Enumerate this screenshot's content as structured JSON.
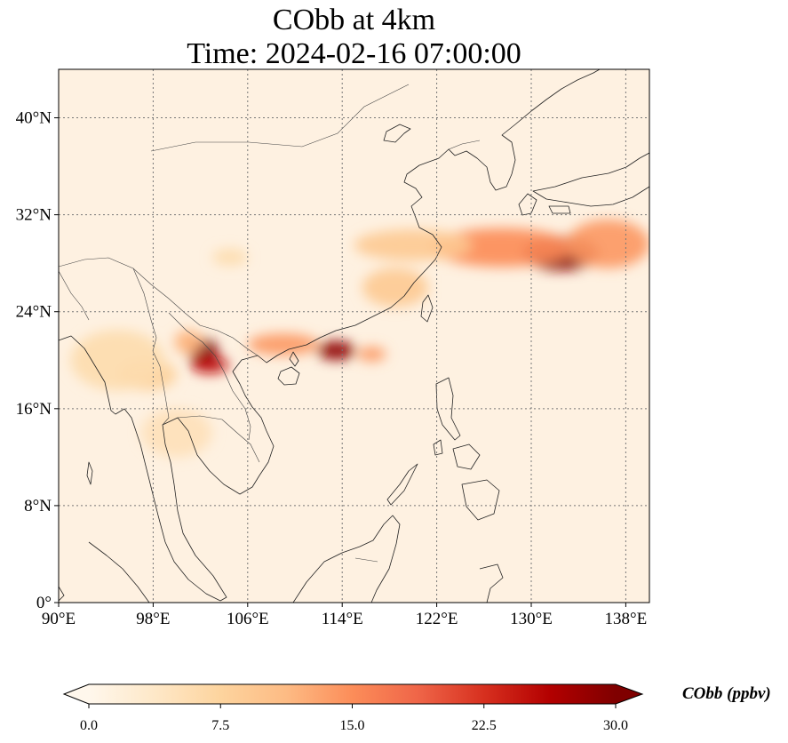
{
  "title": {
    "line1": "CObb at 4km",
    "line2": "Time: 2024-02-16 07:00:00"
  },
  "map": {
    "lon_range": [
      90,
      140
    ],
    "lat_range": [
      0,
      44
    ],
    "lon_ticks": [
      "90°E",
      "98°E",
      "106°E",
      "114°E",
      "122°E",
      "130°E",
      "138°E"
    ],
    "lon_tick_values": [
      90,
      98,
      106,
      114,
      122,
      130,
      138
    ],
    "lat_ticks": [
      "0°",
      "8°N",
      "16°N",
      "24°N",
      "32°N",
      "40°N"
    ],
    "lat_tick_values": [
      0,
      8,
      16,
      24,
      32,
      40
    ],
    "gridlines": true,
    "field_colormap": "OrRd",
    "plumes": [
      {
        "lon": 132.5,
        "lat": 28.8,
        "rlon": 3.2,
        "rlat": 1.4,
        "val": 29
      },
      {
        "lon": 127.5,
        "lat": 29.3,
        "rlon": 6.0,
        "rlat": 1.6,
        "val": 15
      },
      {
        "lon": 136.5,
        "lat": 29.6,
        "rlon": 3.5,
        "rlat": 2.0,
        "val": 14
      },
      {
        "lon": 120.0,
        "lat": 29.5,
        "rlon": 5.0,
        "rlat": 1.3,
        "val": 9
      },
      {
        "lon": 113.5,
        "lat": 20.8,
        "rlon": 1.6,
        "rlat": 0.8,
        "val": 29
      },
      {
        "lon": 109.0,
        "lat": 21.3,
        "rlon": 3.0,
        "rlat": 0.9,
        "val": 14
      },
      {
        "lon": 116.5,
        "lat": 20.5,
        "rlon": 1.2,
        "rlat": 0.6,
        "val": 14
      },
      {
        "lon": 102.3,
        "lat": 20.6,
        "rlon": 1.2,
        "rlat": 1.2,
        "val": 30
      },
      {
        "lon": 102.8,
        "lat": 19.6,
        "rlon": 1.6,
        "rlat": 0.7,
        "val": 25
      },
      {
        "lon": 101.0,
        "lat": 21.5,
        "rlon": 1.2,
        "rlat": 1.0,
        "val": 12
      },
      {
        "lon": 97.5,
        "lat": 18.8,
        "rlon": 2.5,
        "rlat": 1.3,
        "val": 8
      },
      {
        "lon": 118.5,
        "lat": 26.0,
        "rlon": 2.8,
        "rlat": 1.6,
        "val": 9
      },
      {
        "lon": 104.5,
        "lat": 28.5,
        "rlon": 1.5,
        "rlat": 0.7,
        "val": 6
      },
      {
        "lon": 95.0,
        "lat": 20.0,
        "rlon": 4.0,
        "rlat": 2.5,
        "val": 6
      },
      {
        "lon": 100.0,
        "lat": 14.0,
        "rlon": 3.0,
        "rlat": 2.0,
        "val": 5
      }
    ]
  },
  "colorbar": {
    "ticks": [
      "0.0",
      "7.5",
      "15.0",
      "22.5",
      "30.0"
    ],
    "tick_values": [
      0,
      7.5,
      15,
      22.5,
      30
    ],
    "range": [
      0,
      30
    ],
    "label": "CObb (ppbv)",
    "colors": [
      "#fff7ec",
      "#fee8c8",
      "#fdd49e",
      "#fdbb84",
      "#fc8d59",
      "#ef6548",
      "#d7301f",
      "#b30000",
      "#7f0000"
    ]
  }
}
